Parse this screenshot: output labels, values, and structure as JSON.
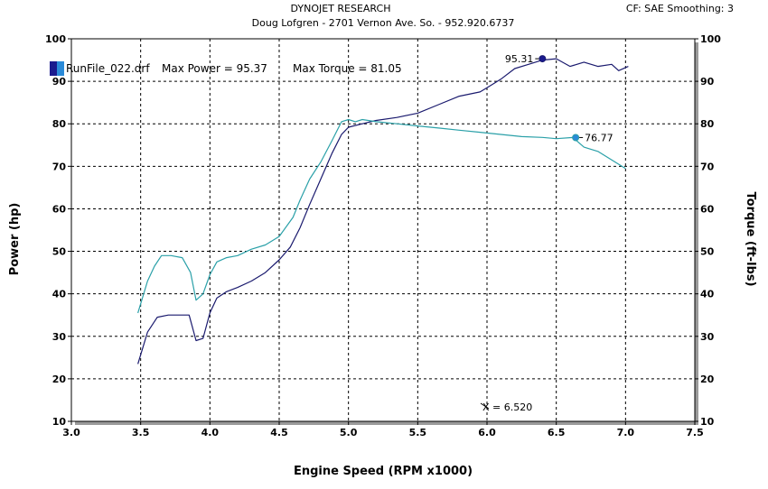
{
  "header": {
    "title": "DYNOJET RESEARCH",
    "subtitle": "Doug Lofgren - 2701 Vernon Ave. So. - 952.920.6737",
    "settings": "CF: SAE  Smoothing: 3"
  },
  "legend": {
    "run_file": "RunFile_022.drf",
    "max_power_label": "Max Power = 95.37",
    "max_torque_label": "Max Torque = 81.05"
  },
  "readout": {
    "cursor": "X = 6.520"
  },
  "chart_data": {
    "type": "line",
    "xlabel": "Engine Speed (RPM x1000)",
    "ylabel_left": "Power (hp)",
    "ylabel_right": "Torque (ft-lbs)",
    "xlim": [
      3.0,
      7.5
    ],
    "ylim": [
      10,
      100
    ],
    "x_ticks": [
      "3.0",
      "3.5",
      "4.0",
      "4.5",
      "5.0",
      "5.5",
      "6.0",
      "6.5",
      "7.0",
      "7.5"
    ],
    "y_ticks_left": [
      "10",
      "20",
      "30",
      "40",
      "50",
      "60",
      "70",
      "80",
      "90",
      "100"
    ],
    "y_ticks_right": [
      "10",
      "20",
      "30",
      "40",
      "50",
      "60",
      "70",
      "80",
      "90",
      "100"
    ],
    "grid": true,
    "series": [
      {
        "name": "Power",
        "color": "#1a1a6e",
        "x": [
          3.48,
          3.55,
          3.62,
          3.7,
          3.78,
          3.85,
          3.9,
          3.95,
          4.0,
          4.05,
          4.12,
          4.2,
          4.3,
          4.4,
          4.5,
          4.58,
          4.65,
          4.72,
          4.8,
          4.88,
          4.95,
          5.0,
          5.1,
          5.2,
          5.35,
          5.5,
          5.65,
          5.8,
          5.95,
          6.0,
          6.1,
          6.2,
          6.3,
          6.4,
          6.5,
          6.6,
          6.7,
          6.8,
          6.9,
          6.95,
          7.02
        ],
        "y": [
          23.5,
          31,
          34.5,
          35,
          35,
          35,
          29,
          29.5,
          35.5,
          39,
          40.5,
          41.5,
          43,
          45,
          48,
          51,
          55.5,
          61,
          67,
          73,
          77.5,
          79.2,
          80,
          80.8,
          81.5,
          82.5,
          84.5,
          86.5,
          87.5,
          88.5,
          90.5,
          93,
          94,
          95,
          95.3,
          93.5,
          94.5,
          93.5,
          94,
          92.5,
          93.5
        ]
      },
      {
        "name": "Torque",
        "color": "#2aa0a8",
        "x": [
          3.48,
          3.55,
          3.6,
          3.65,
          3.72,
          3.8,
          3.86,
          3.9,
          3.95,
          4.0,
          4.05,
          4.12,
          4.2,
          4.3,
          4.4,
          4.5,
          4.6,
          4.65,
          4.72,
          4.8,
          4.88,
          4.95,
          5.0,
          5.05,
          5.1,
          5.2,
          5.35,
          5.5,
          5.65,
          5.8,
          5.95,
          6.1,
          6.25,
          6.4,
          6.5,
          6.62,
          6.7,
          6.8,
          6.9,
          7.0
        ],
        "y": [
          35.5,
          43,
          46.5,
          49,
          49,
          48.5,
          45,
          38.5,
          40,
          44.5,
          47.5,
          48.5,
          49,
          50.5,
          51.5,
          53.5,
          58,
          62,
          67,
          71,
          76,
          80.5,
          81,
          80.5,
          81,
          80.5,
          80,
          79.5,
          79,
          78.5,
          78,
          77.5,
          77,
          76.8,
          76.5,
          76.77,
          74.5,
          73.5,
          71.5,
          69.5
        ]
      }
    ],
    "annotations": [
      {
        "label": "95.31",
        "x": 6.4,
        "y": 95.31,
        "series": "Power"
      },
      {
        "label": "76.77",
        "x": 6.64,
        "y": 76.77,
        "series": "Torque"
      }
    ]
  }
}
